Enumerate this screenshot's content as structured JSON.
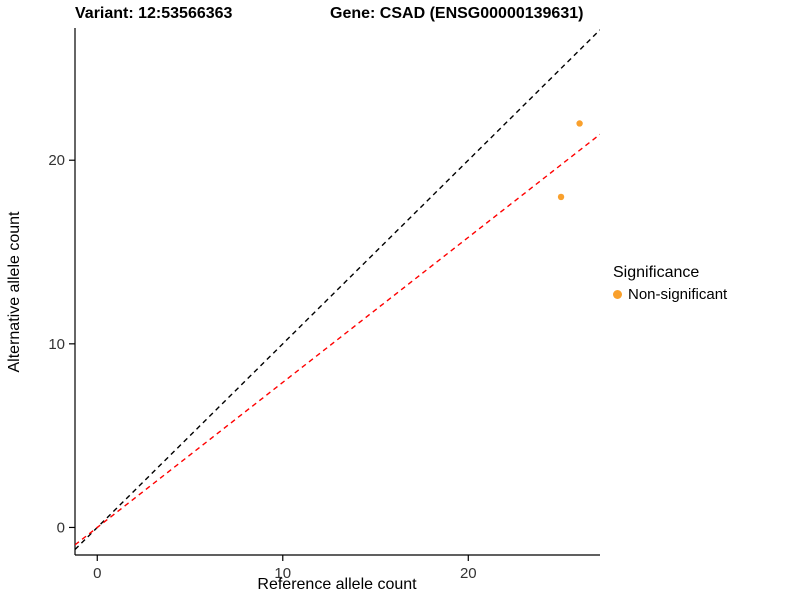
{
  "header": {
    "variant_title": "Variant: 12:53566363",
    "gene_title": "Gene: CSAD (ENSG00000139631)"
  },
  "chart_data": {
    "type": "scatter",
    "title": "",
    "xlabel": "Reference allele count",
    "ylabel": "Alternative allele count",
    "xlim": [
      -1.2,
      27.1
    ],
    "ylim": [
      -1.5,
      27.2
    ],
    "x_ticks": [
      0,
      10,
      20
    ],
    "y_ticks": [
      0,
      10,
      20
    ],
    "grid": false,
    "points": [
      {
        "x": 26,
        "y": 22,
        "series": "Non-significant"
      },
      {
        "x": 25,
        "y": 18,
        "series": "Non-significant"
      }
    ],
    "lines": [
      {
        "name": "identity-line",
        "slope": 1,
        "intercept": 0,
        "color": "#000000",
        "style": "dashed"
      },
      {
        "name": "expected-ratio-line",
        "slope": 0.79,
        "intercept": 0,
        "color": "#FF0000",
        "style": "dashed"
      }
    ],
    "legend": {
      "title": "Significance",
      "position": "right",
      "items": [
        {
          "label": "Non-significant",
          "color": "#F9A02C"
        }
      ]
    },
    "colors": {
      "point": "#F9A02C",
      "axis": "#000000",
      "tick_text": "#333333"
    }
  }
}
